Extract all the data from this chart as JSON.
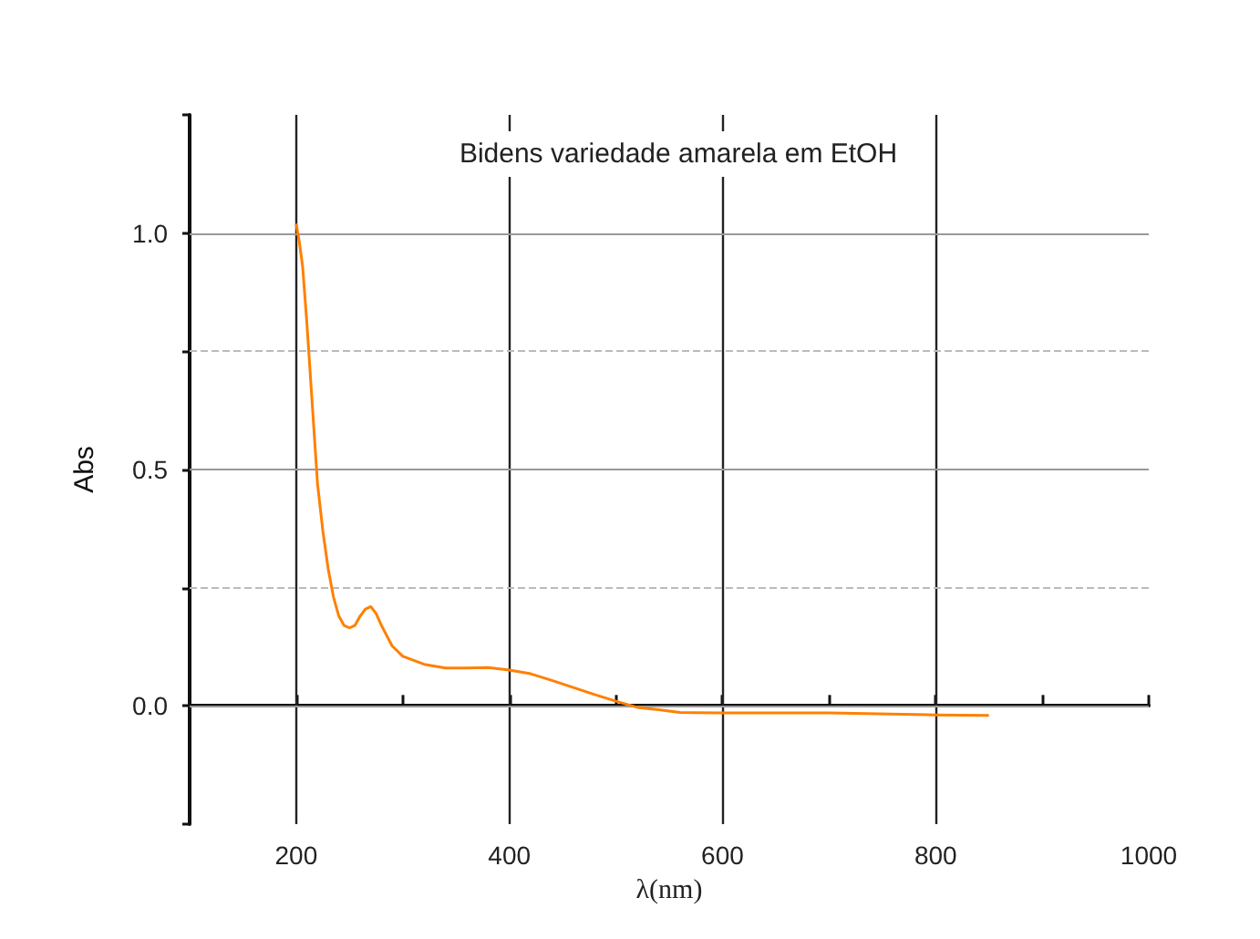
{
  "chart_data": {
    "type": "line",
    "title": "Bidens variedade amarela em EtOH",
    "xlabel": "λ(nm)",
    "ylabel": "Abs",
    "x": [
      200,
      203,
      206,
      210,
      215,
      220,
      225,
      230,
      235,
      240,
      245,
      250,
      255,
      260,
      265,
      270,
      275,
      280,
      290,
      300,
      320,
      340,
      360,
      380,
      400,
      420,
      440,
      460,
      480,
      500,
      520,
      540,
      560,
      600,
      700,
      800,
      850
    ],
    "series": [
      {
        "color": "#ff8000",
        "values": [
          1.02,
          0.98,
          0.93,
          0.81,
          0.64,
          0.47,
          0.37,
          0.29,
          0.23,
          0.19,
          0.17,
          0.165,
          0.17,
          0.19,
          0.205,
          0.21,
          0.195,
          0.17,
          0.127,
          0.105,
          0.088,
          0.08,
          0.08,
          0.081,
          0.076,
          0.068,
          0.054,
          0.039,
          0.024,
          0.01,
          -0.003,
          -0.008,
          -0.014,
          -0.015,
          -0.015,
          -0.019,
          -0.02
        ]
      }
    ],
    "xlim": [
      100,
      1000
    ],
    "xticks": [
      {
        "value": 100,
        "label": null
      },
      200,
      {
        "value": 300,
        "label": null
      },
      400,
      {
        "value": 500,
        "label": null
      },
      600,
      {
        "value": 700,
        "label": null
      },
      800,
      {
        "value": 900,
        "label": null
      },
      1000
    ],
    "ylim": [
      -0.25,
      1.25
    ],
    "yticks": [
      {
        "value": -0.25,
        "label": null
      },
      {
        "value": 0,
        "label": "0.0"
      },
      {
        "value": 0.25,
        "label": null
      },
      {
        "value": 0.5,
        "label": "0.5"
      },
      {
        "value": 0.75,
        "label": null
      },
      {
        "value": 1,
        "label": "1.0"
      },
      {
        "value": 1.25,
        "label": null
      }
    ],
    "grid": true
  }
}
